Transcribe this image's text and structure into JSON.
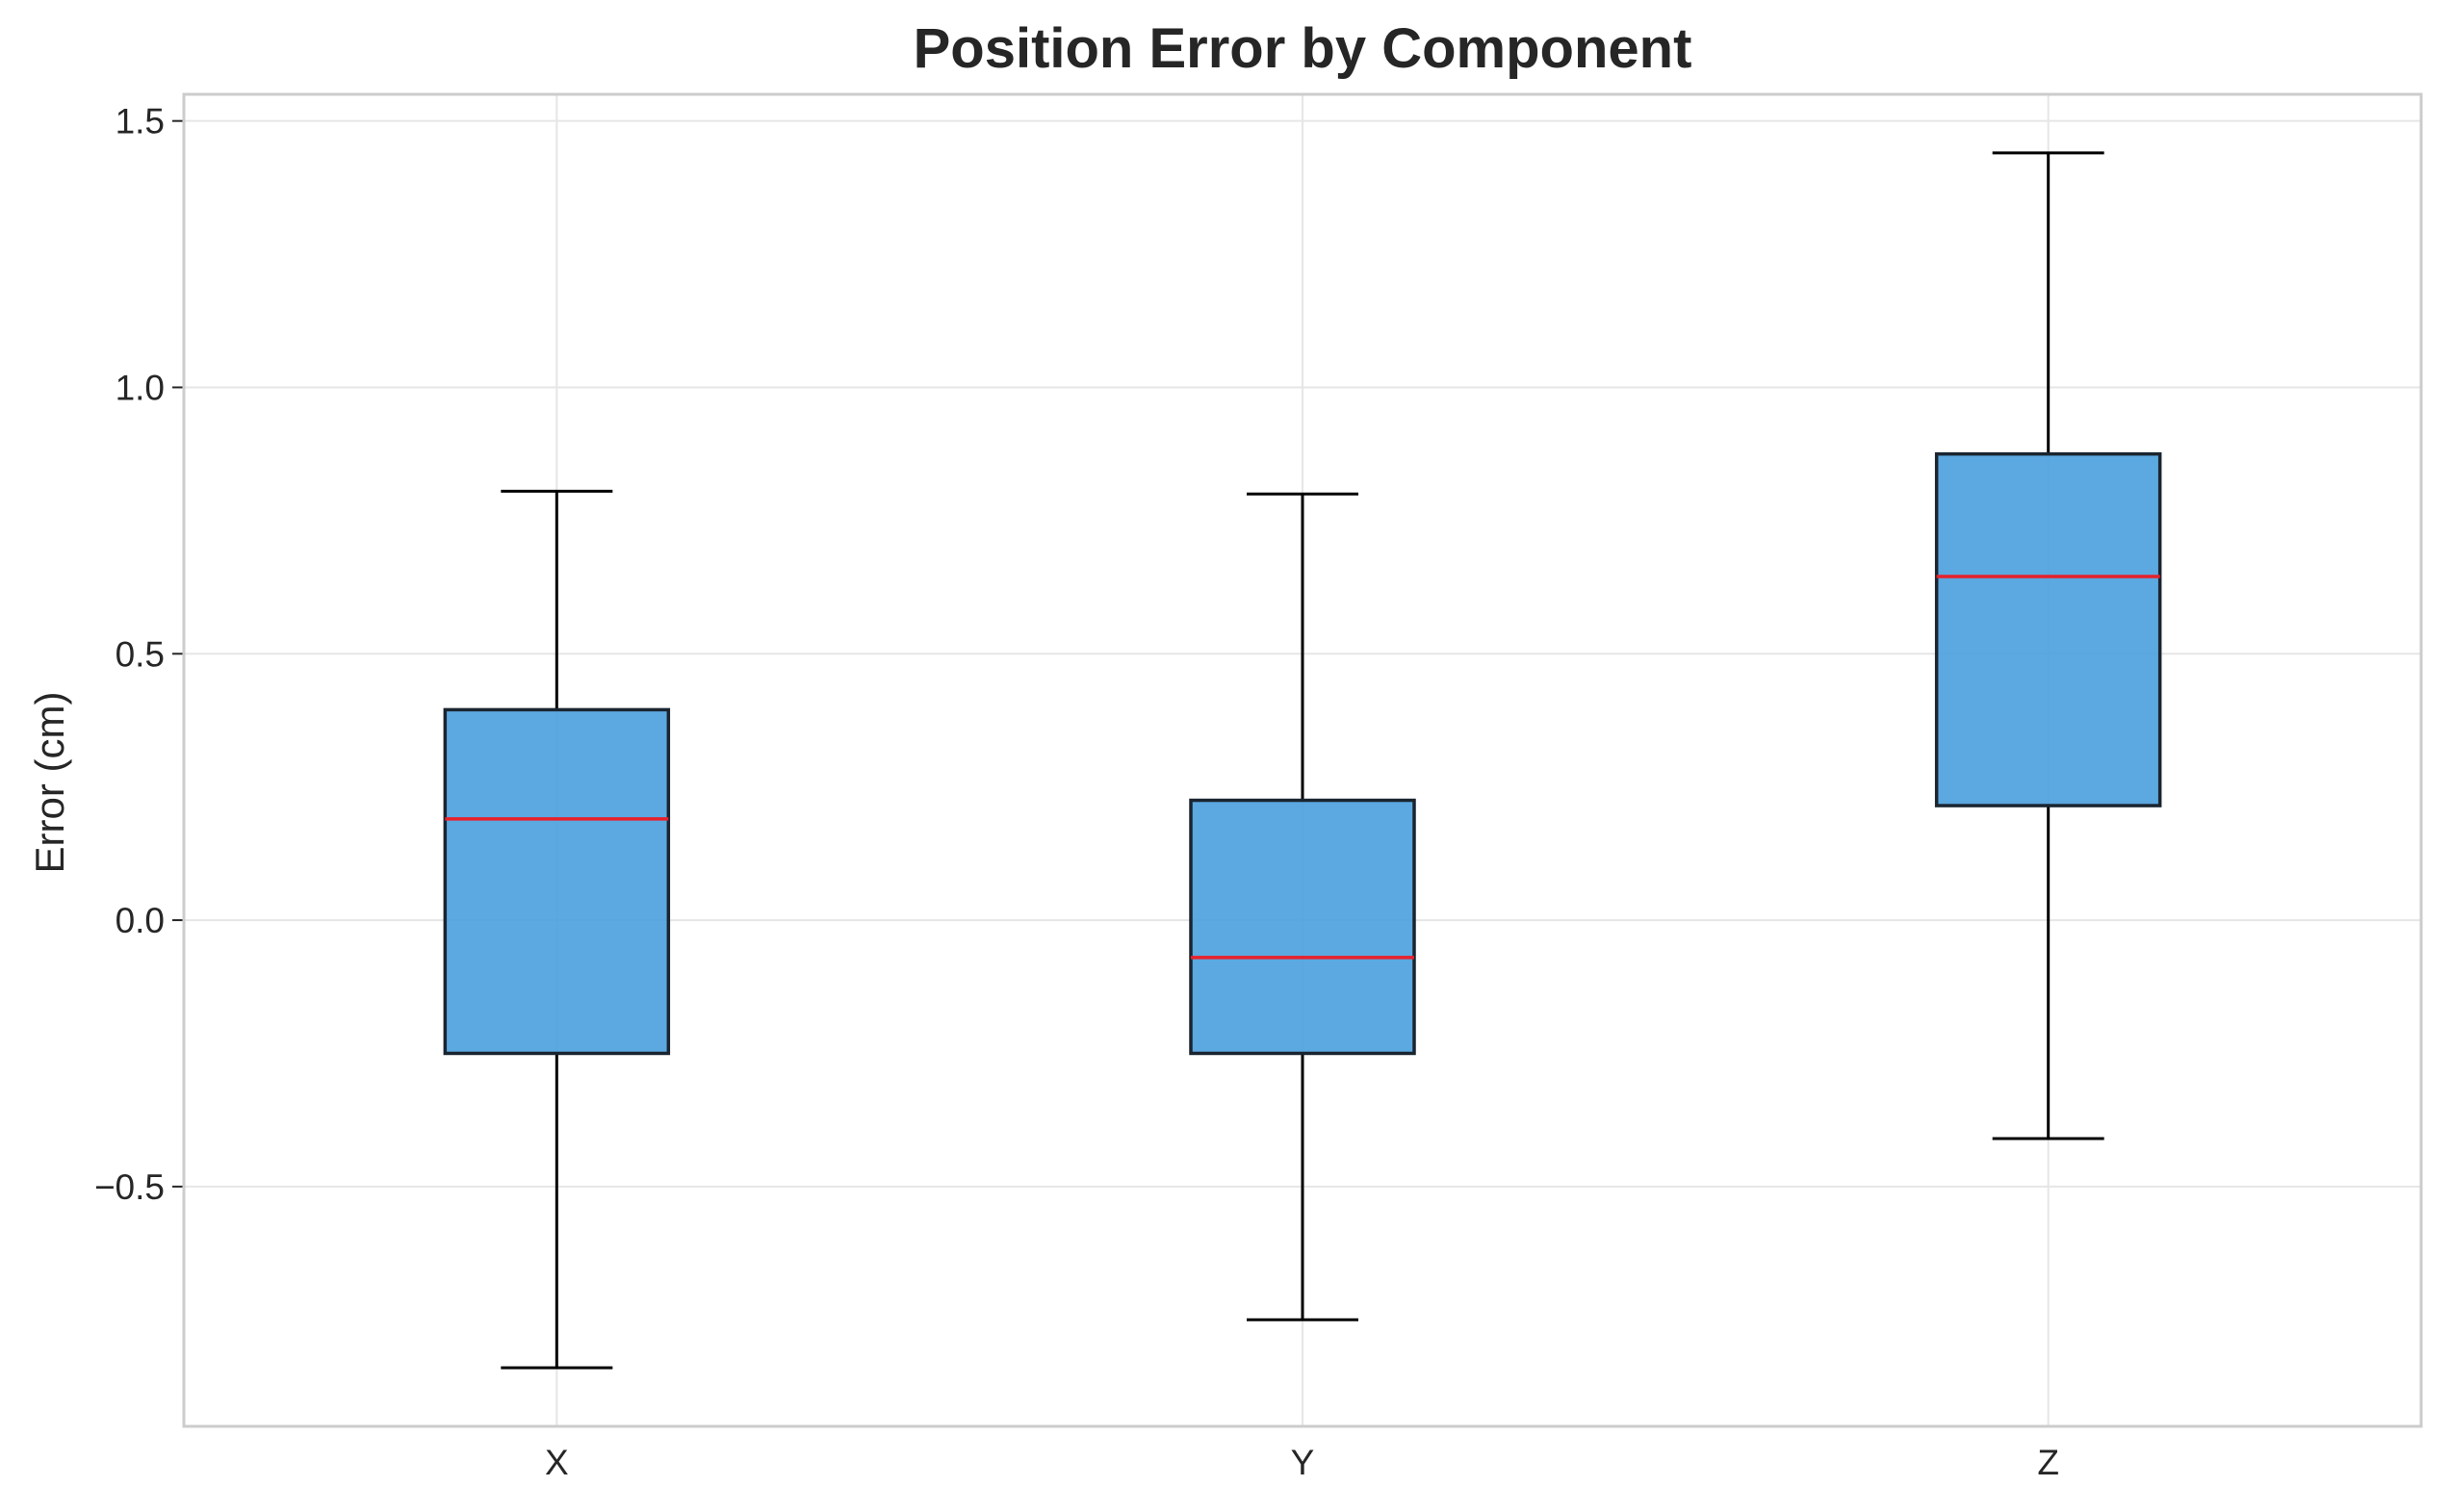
{
  "chart_data": {
    "type": "box",
    "title": "Position Error by Component",
    "xlabel": "",
    "ylabel": "Error (cm)",
    "ylim": [
      -0.95,
      1.55
    ],
    "yticks": [
      -0.5,
      0.0,
      0.5,
      1.0,
      1.5
    ],
    "ytick_labels": [
      "−0.5",
      "0.0",
      "0.5",
      "1.0",
      "1.5"
    ],
    "categories": [
      "X",
      "Y",
      "Z"
    ],
    "boxes": [
      {
        "category": "X",
        "whisker_low": -0.84,
        "q1": -0.25,
        "median": 0.19,
        "q3": 0.395,
        "whisker_high": 0.805
      },
      {
        "category": "Y",
        "whisker_low": -0.75,
        "q1": -0.25,
        "median": -0.07,
        "q3": 0.225,
        "whisker_high": 0.8
      },
      {
        "category": "Z",
        "whisker_low": -0.41,
        "q1": 0.215,
        "median": 0.645,
        "q3": 0.875,
        "whisker_high": 1.44
      }
    ],
    "grid": true,
    "colors": {
      "box_fill": "#4A9FDD",
      "box_edge": "#1a2530",
      "median": "#e8202a",
      "whisker": "#000000",
      "grid": "#e6e6e6",
      "frame": "#cccccc"
    }
  }
}
